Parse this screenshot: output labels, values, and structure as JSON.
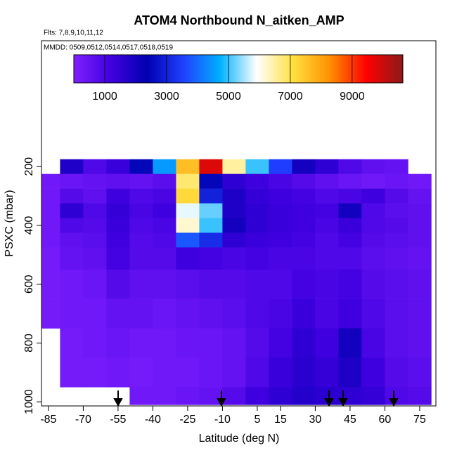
{
  "chart_data": {
    "type": "heatmap",
    "title": "ATOM4 Northbound N_aitken_AMP",
    "subtitle": "Flts: 7,8,9,10,11,12",
    "annotation": "MMDD: 0509,0512,0514,0517,0518,0519",
    "x_label": "Latitude (deg N)",
    "y_label": "PSXC (mbar)",
    "xlim": [
      -88,
      82
    ],
    "ylim": [
      -228,
      1014
    ],
    "xticks": [
      -85,
      -70,
      -55,
      -40,
      -25,
      -10,
      5,
      15,
      30,
      45,
      60,
      75
    ],
    "yticks": [
      200,
      400,
      600,
      800,
      1000
    ],
    "x_bins": [
      -88,
      -80,
      -70,
      -60,
      -50,
      -40,
      -30,
      -20,
      -10,
      0,
      10,
      20,
      30,
      40,
      50,
      60,
      70,
      80
    ],
    "y_bins": [
      175,
      225,
      275,
      325,
      375,
      425,
      475,
      550,
      650,
      750,
      850,
      950,
      1010
    ],
    "z": [
      [
        null,
        1800,
        900,
        1300,
        2500,
        4500,
        7600,
        9800,
        6500,
        5000,
        3500,
        2000,
        1500,
        900,
        600,
        500,
        null
      ],
      [
        300,
        400,
        500,
        600,
        500,
        700,
        6800,
        2500,
        1500,
        1200,
        1000,
        800,
        600,
        400,
        300,
        400,
        300
      ],
      [
        300,
        800,
        600,
        1200,
        900,
        1000,
        7200,
        3000,
        1800,
        1400,
        1200,
        1100,
        900,
        1000,
        1200,
        800,
        500
      ],
      [
        300,
        1500,
        900,
        1400,
        1000,
        1200,
        5800,
        5200,
        1800,
        1500,
        1300,
        1200,
        1100,
        2000,
        900,
        700,
        600
      ],
      [
        300,
        900,
        800,
        1300,
        900,
        1000,
        6200,
        5000,
        2000,
        1500,
        1300,
        1200,
        1000,
        1300,
        900,
        800,
        600
      ],
      [
        300,
        600,
        700,
        1200,
        800,
        900,
        3800,
        3200,
        1500,
        1300,
        1200,
        1100,
        900,
        1100,
        800,
        700,
        600
      ],
      [
        200,
        500,
        600,
        1100,
        800,
        800,
        1200,
        1100,
        1000,
        1100,
        1000,
        1000,
        900,
        900,
        700,
        600,
        500
      ],
      [
        200,
        300,
        400,
        800,
        600,
        600,
        700,
        800,
        800,
        900,
        900,
        1100,
        1000,
        1100,
        800,
        700,
        600
      ],
      [
        200,
        300,
        300,
        500,
        500,
        400,
        500,
        600,
        700,
        900,
        1000,
        1300,
        1000,
        1200,
        900,
        700,
        600
      ],
      [
        null,
        200,
        300,
        400,
        300,
        300,
        400,
        400,
        500,
        800,
        1100,
        1500,
        1200,
        2000,
        1000,
        700,
        600
      ],
      [
        null,
        200,
        200,
        300,
        200,
        300,
        300,
        400,
        500,
        900,
        1300,
        1600,
        1400,
        1800,
        1200,
        800,
        700
      ],
      [
        null,
        null,
        null,
        null,
        300,
        300,
        400,
        500,
        800,
        1200,
        1500,
        1700,
        1600,
        1500,
        1400,
        900,
        800
      ]
    ],
    "colorbar": {
      "lim": [
        0,
        10640
      ],
      "ticks": [
        1000,
        3000,
        5000,
        7000,
        9000
      ],
      "colors": [
        "#8020ff",
        "#4000e0",
        "#0000b0",
        "#2040ff",
        "#00b0ff",
        "#ffffff",
        "#ffe040",
        "#ff9000",
        "#ff0000",
        "#8b1a1a"
      ]
    }
  }
}
